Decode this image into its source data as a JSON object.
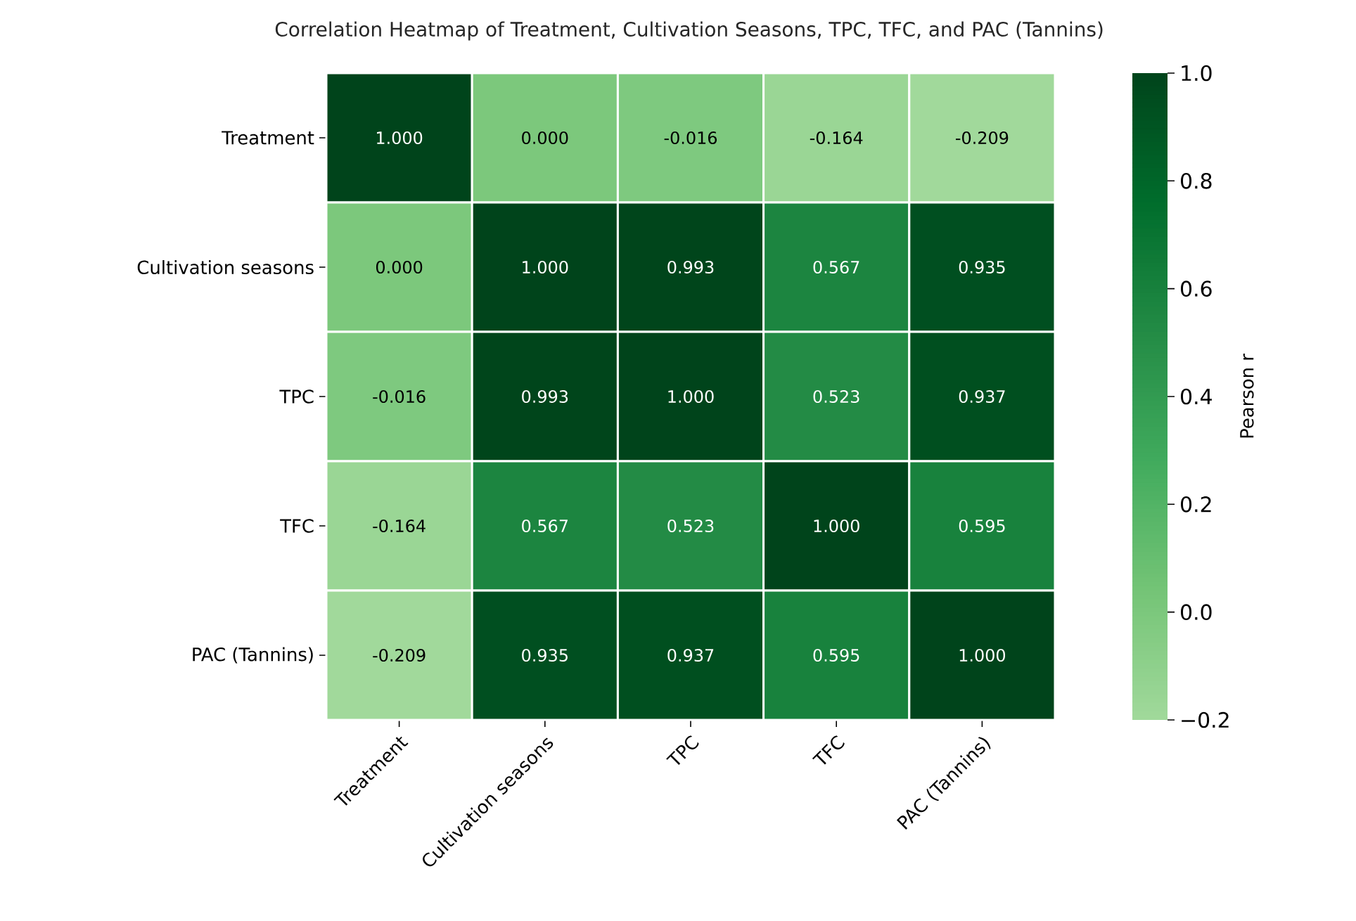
{
  "chart_data": {
    "type": "heatmap",
    "title": "Correlation Heatmap of Treatment, Cultivation Seasons, TPC, TFC, and PAC (Tannins)",
    "categories": [
      "Treatment",
      "Cultivation seasons",
      "TPC",
      "TFC",
      "PAC (Tannins)"
    ],
    "y_categories": [
      "Treatment",
      "Cultivation seasons",
      "TPC",
      "TFC",
      "PAC (Tannins)"
    ],
    "cells": [
      [
        1.0,
        0.0,
        -0.016,
        -0.164,
        -0.209
      ],
      [
        0.0,
        1.0,
        0.993,
        0.567,
        0.935
      ],
      [
        -0.016,
        0.993,
        1.0,
        0.523,
        0.937
      ],
      [
        -0.164,
        0.567,
        0.523,
        1.0,
        0.595
      ],
      [
        -0.209,
        0.935,
        0.937,
        0.595,
        1.0
      ]
    ],
    "cell_labels": [
      [
        "1.000",
        "0.000",
        "-0.016",
        "-0.164",
        "-0.209"
      ],
      [
        "0.000",
        "1.000",
        "0.993",
        "0.567",
        "0.935"
      ],
      [
        "-0.016",
        "0.993",
        "1.000",
        "0.523",
        "0.937"
      ],
      [
        "-0.164",
        "0.567",
        "0.523",
        "1.000",
        "0.595"
      ],
      [
        "-0.209",
        "0.935",
        "0.937",
        "0.595",
        "1.000"
      ]
    ],
    "clim": [
      -0.2,
      1.0
    ],
    "cticks": [
      {
        "value": -0.2,
        "label": "−0.2"
      },
      {
        "value": 0.0,
        "label": "0.0"
      },
      0.2,
      0.4,
      0.6,
      0.8,
      {
        "value": 1.0,
        "label": "1.0"
      }
    ],
    "clabel": "Pearson r"
  }
}
